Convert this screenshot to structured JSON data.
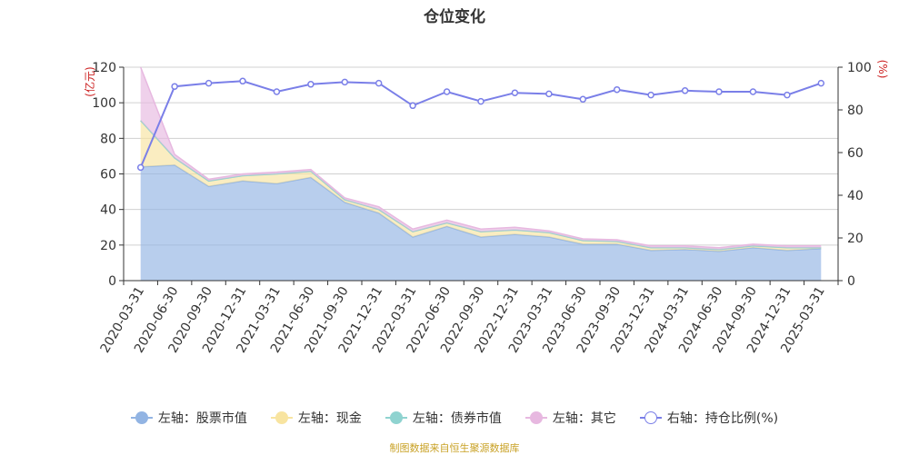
{
  "title": "仓位变化",
  "source_note": "制图数据来自恒生聚源数据库",
  "colors": {
    "stock": "#92b4e3",
    "cash": "#f8e4a0",
    "bond": "#8fd3d0",
    "other": "#e7b8e0",
    "ratio": "#7a7fe8",
    "axis_unit": "#cc2222",
    "grid": "#d0d0d0"
  },
  "legend": [
    {
      "label": "左轴：股票市值",
      "key": "stock"
    },
    {
      "label": "左轴：现金",
      "key": "cash"
    },
    {
      "label": "左轴：债券市值",
      "key": "bond"
    },
    {
      "label": "左轴：其它",
      "key": "other"
    },
    {
      "label": "右轴：持仓比例(%)",
      "key": "ratio"
    }
  ],
  "chart_data": {
    "type": "area",
    "title": "仓位变化",
    "left_axis": {
      "unit": "(亿元)",
      "ylim": [
        0,
        120
      ],
      "ticks": [
        0,
        20,
        40,
        60,
        80,
        100,
        120
      ]
    },
    "right_axis": {
      "unit": "(%)",
      "ylim": [
        0,
        100
      ],
      "ticks": [
        0,
        20,
        40,
        60,
        80,
        100
      ]
    },
    "grid": true,
    "legend_position": "bottom",
    "x": [
      "2020-03-31",
      "2020-06-30",
      "2020-09-30",
      "2020-12-31",
      "2021-03-31",
      "2021-06-30",
      "2021-09-30",
      "2021-12-31",
      "2022-03-31",
      "2022-06-30",
      "2022-09-30",
      "2022-12-31",
      "2023-03-31",
      "2023-06-30",
      "2023-09-30",
      "2023-12-31",
      "2024-03-31",
      "2024-06-30",
      "2024-09-30",
      "2024-12-31",
      "2025-03-31"
    ],
    "series": [
      {
        "name": "左轴：股票市值",
        "key": "stock",
        "axis": "left",
        "stacked": true,
        "values": [
          64,
          65,
          53,
          56,
          54.5,
          58,
          44,
          38,
          24.5,
          30.5,
          24.5,
          26,
          24.5,
          20.5,
          20.5,
          17,
          17.5,
          16.5,
          18.5,
          17,
          18
        ]
      },
      {
        "name": "左轴：现金",
        "key": "cash",
        "axis": "left",
        "stacked": true,
        "values": [
          26,
          4,
          3,
          3,
          5.5,
          3.5,
          1.5,
          2,
          3,
          2,
          3,
          2.5,
          2.5,
          2,
          1.5,
          1.5,
          1,
          1,
          1,
          1.5,
          0.5
        ]
      },
      {
        "name": "左轴：债券市值",
        "key": "bond",
        "axis": "left",
        "stacked": true,
        "values": [
          0,
          0,
          0,
          0,
          0,
          0,
          0,
          0,
          0,
          0,
          0,
          0,
          0,
          0,
          0,
          0,
          0,
          0,
          0,
          0,
          0
        ]
      },
      {
        "name": "左轴：其它",
        "key": "other",
        "axis": "left",
        "stacked": true,
        "values": [
          30,
          2,
          1,
          1,
          1,
          1,
          1,
          1.5,
          1.5,
          1.5,
          1.5,
          1.5,
          1,
          1,
          1,
          1,
          1,
          1,
          1,
          1,
          1
        ]
      },
      {
        "name": "右轴：持仓比例(%)",
        "key": "ratio",
        "axis": "right",
        "type": "line",
        "values": [
          53,
          91,
          92.5,
          93.5,
          88.5,
          92,
          93,
          92.5,
          82,
          88.5,
          84,
          88,
          87.5,
          85,
          89.5,
          87,
          89,
          88.5,
          88.5,
          87,
          92.5
        ]
      }
    ]
  }
}
